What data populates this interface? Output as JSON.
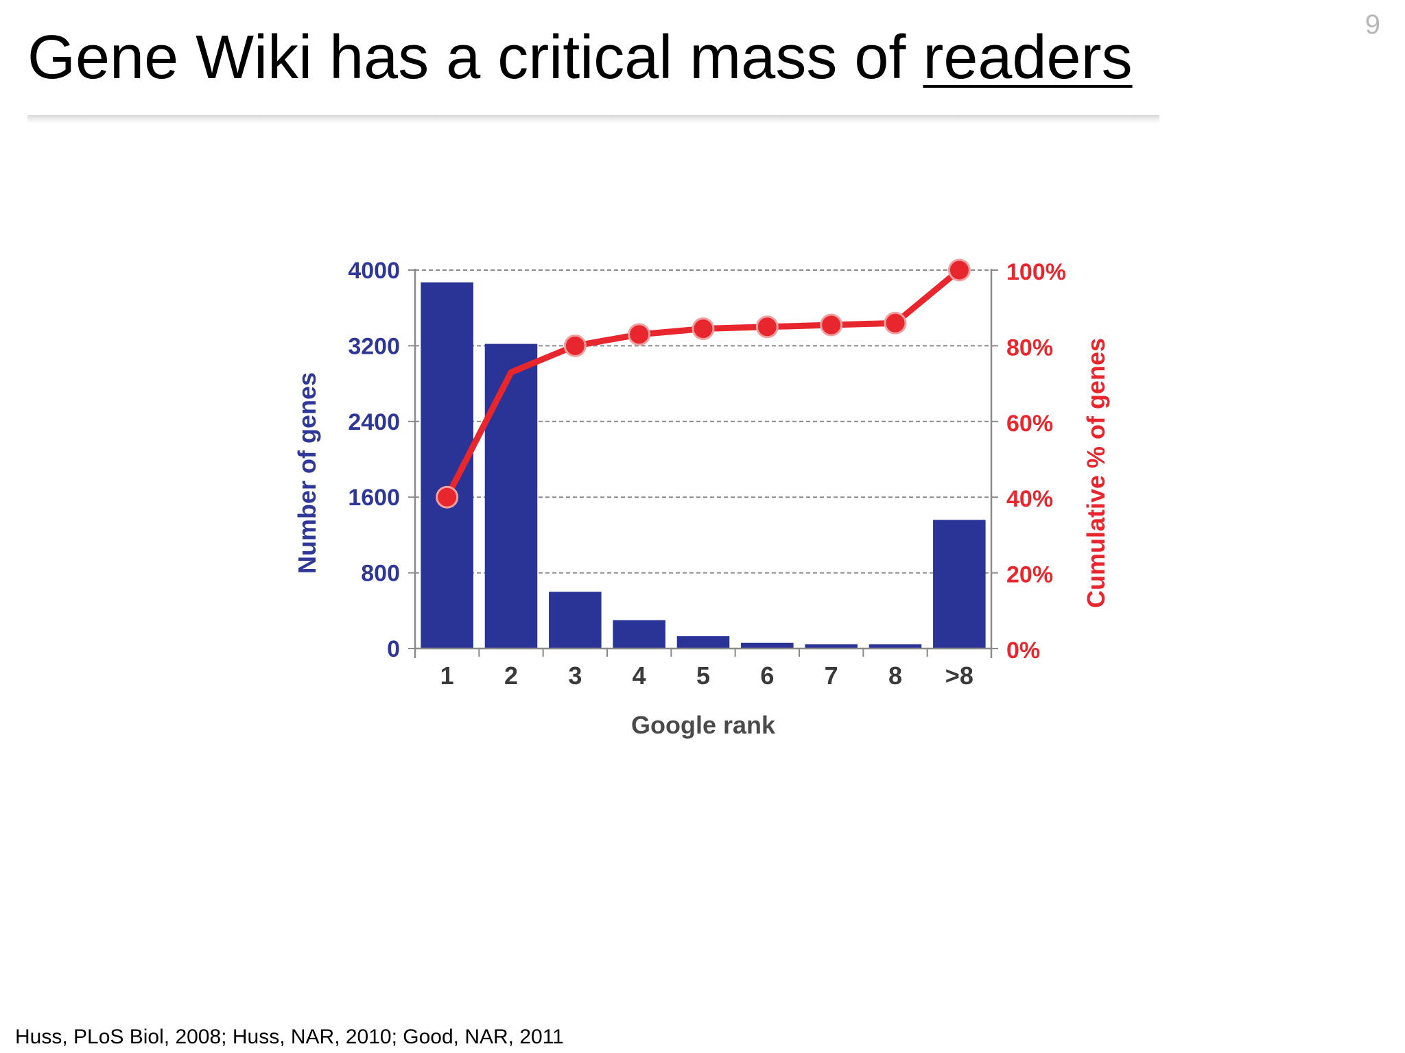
{
  "slide": {
    "title_prefix": "Gene Wiki has a critical mass of ",
    "title_emphasis": "readers",
    "page_number": "9",
    "citation": "Huss, PLoS Biol, 2008; Huss, NAR, 2010; Good, NAR, 2011"
  },
  "colors": {
    "bar": "#2a3496",
    "line": "#e8262d",
    "left_axis_text": "#2f3898",
    "right_axis_text": "#e8262d",
    "x_axis_text": "#4a4a4a",
    "grid": "#8a8a8a"
  },
  "chart_data": {
    "type": "bar",
    "categories": [
      "1",
      "2",
      "3",
      "4",
      "5",
      "6",
      "7",
      "8",
      ">8"
    ],
    "xlabel": "Google rank",
    "ylabel": "Number of genes",
    "y2label": "Cumulative % of genes",
    "ylim": [
      0,
      4000
    ],
    "yticks": [
      0,
      800,
      1600,
      2400,
      3200,
      4000
    ],
    "y2lim": [
      0,
      100
    ],
    "y2ticks": [
      "0%",
      "20%",
      "40%",
      "60%",
      "80%",
      "100%"
    ],
    "grid": "horizontal dashed",
    "series": [
      {
        "type": "bar",
        "axis": "left",
        "values": [
          3870,
          3220,
          600,
          300,
          130,
          60,
          45,
          45,
          1360
        ]
      },
      {
        "type": "line",
        "axis": "right",
        "values": [
          40,
          73,
          80,
          83,
          84.5,
          85,
          85.5,
          86,
          100
        ],
        "markers": [
          true,
          false,
          true,
          true,
          true,
          true,
          true,
          true,
          true
        ]
      }
    ]
  }
}
